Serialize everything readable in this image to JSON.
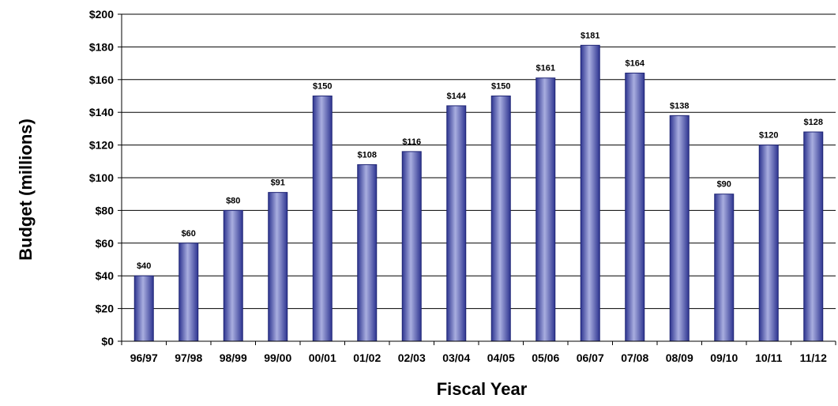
{
  "chart_data": {
    "type": "bar",
    "title": "",
    "xlabel": "Fiscal Year",
    "ylabel": "Budget (millions)",
    "ylim": [
      0,
      200
    ],
    "y_ticks": [
      0,
      20,
      40,
      60,
      80,
      100,
      120,
      140,
      160,
      180,
      200
    ],
    "y_tick_labels": [
      "$0",
      "$20",
      "$40",
      "$60",
      "$80",
      "$100",
      "$120",
      "$140",
      "$160",
      "$180",
      "$200"
    ],
    "grid": true,
    "legend": "none",
    "bar_color": "#4B52A8",
    "categories": [
      "96/97",
      "97/98",
      "98/99",
      "99/00",
      "00/01",
      "01/02",
      "02/03",
      "03/04",
      "04/05",
      "05/06",
      "06/07",
      "07/08",
      "08/09",
      "09/10",
      "10/11",
      "11/12"
    ],
    "values": [
      40,
      60,
      80,
      91,
      150,
      108,
      116,
      144,
      150,
      161,
      181,
      164,
      138,
      90,
      120,
      128
    ],
    "data_labels": [
      "$40",
      "$60",
      "$80",
      "$91",
      "$150",
      "$108",
      "$116",
      "$144",
      "$150",
      "$161",
      "$181",
      "$164",
      "$138",
      "$90",
      "$120",
      "$128"
    ]
  }
}
